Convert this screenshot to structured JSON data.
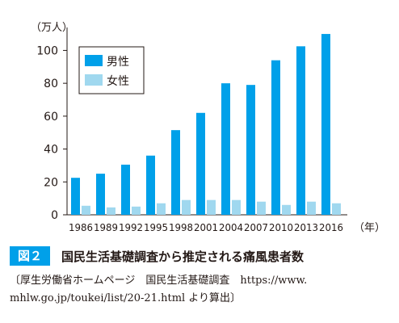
{
  "chart_data": {
    "type": "bar",
    "categories": [
      "1986",
      "1989",
      "1992",
      "1995",
      "1998",
      "2001",
      "2004",
      "2007",
      "2010",
      "2013",
      "2016"
    ],
    "series": [
      {
        "name": "男性",
        "values": [
          22.5,
          25,
          30.5,
          36,
          51.5,
          62,
          80,
          79,
          94,
          102.5,
          110
        ],
        "color": "#00a0e9"
      },
      {
        "name": "女性",
        "values": [
          5.5,
          4.5,
          5,
          7,
          9,
          9,
          9,
          8,
          6,
          8,
          7
        ],
        "color": "#a0d8ef"
      }
    ],
    "ylabel": "（万人）",
    "xlabel": "（年）",
    "yticks": [
      0,
      20,
      40,
      60,
      80,
      100
    ],
    "ylim": [
      0,
      112
    ],
    "legend": "top-left",
    "grid": false
  },
  "figure": {
    "label": "図２",
    "title": "国民生活基礎調査から推定される痛風患者数"
  },
  "source": {
    "line1": "〔厚生労働省ホームページ　国民生活基礎調査　https://www.",
    "line2": "mhlw.go.jp/toukei/list/20-21.html より算出〕"
  }
}
